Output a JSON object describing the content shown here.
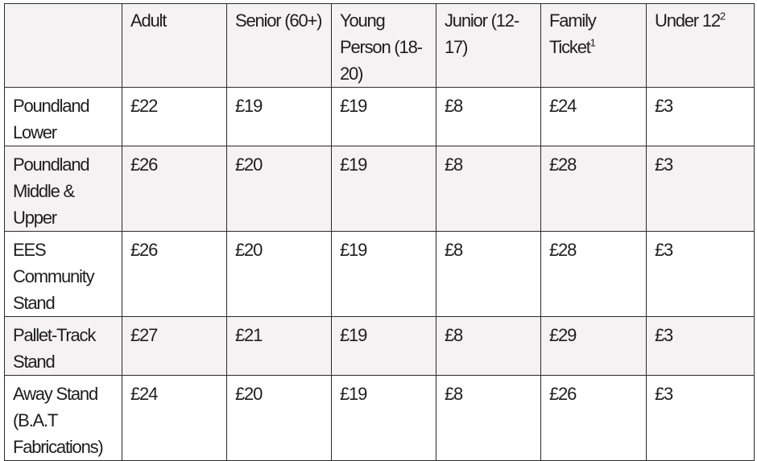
{
  "table": {
    "corner": "",
    "headers": [
      {
        "label": "Adult",
        "sup": ""
      },
      {
        "label": "Senior (60+)",
        "sup": ""
      },
      {
        "label": "Young Person (18-20)",
        "sup": ""
      },
      {
        "label": "Junior (12-17)",
        "sup": ""
      },
      {
        "label": "Family Ticket",
        "sup": "1"
      },
      {
        "label": "Under 12",
        "sup": "2"
      }
    ],
    "rows": [
      {
        "stand": "Poundland Lower",
        "prices": [
          "£22",
          "£19",
          "£19",
          "£8",
          "£24",
          "£3"
        ]
      },
      {
        "stand": "Poundland Middle & Upper",
        "prices": [
          "£26",
          "£20",
          "£19",
          "£8",
          "£28",
          "£3"
        ]
      },
      {
        "stand": "EES Community Stand",
        "prices": [
          "£26",
          "£20",
          "£19",
          "£8",
          "£28",
          "£3"
        ]
      },
      {
        "stand": "Pallet-Track Stand",
        "prices": [
          "£27",
          "£21",
          "£19",
          "£8",
          "£29",
          "£3"
        ]
      },
      {
        "stand": "Away Stand (B.A.T Fabrications)",
        "prices": [
          "£24",
          "£20",
          "£19",
          "£8",
          "£26",
          "£3"
        ]
      }
    ]
  }
}
